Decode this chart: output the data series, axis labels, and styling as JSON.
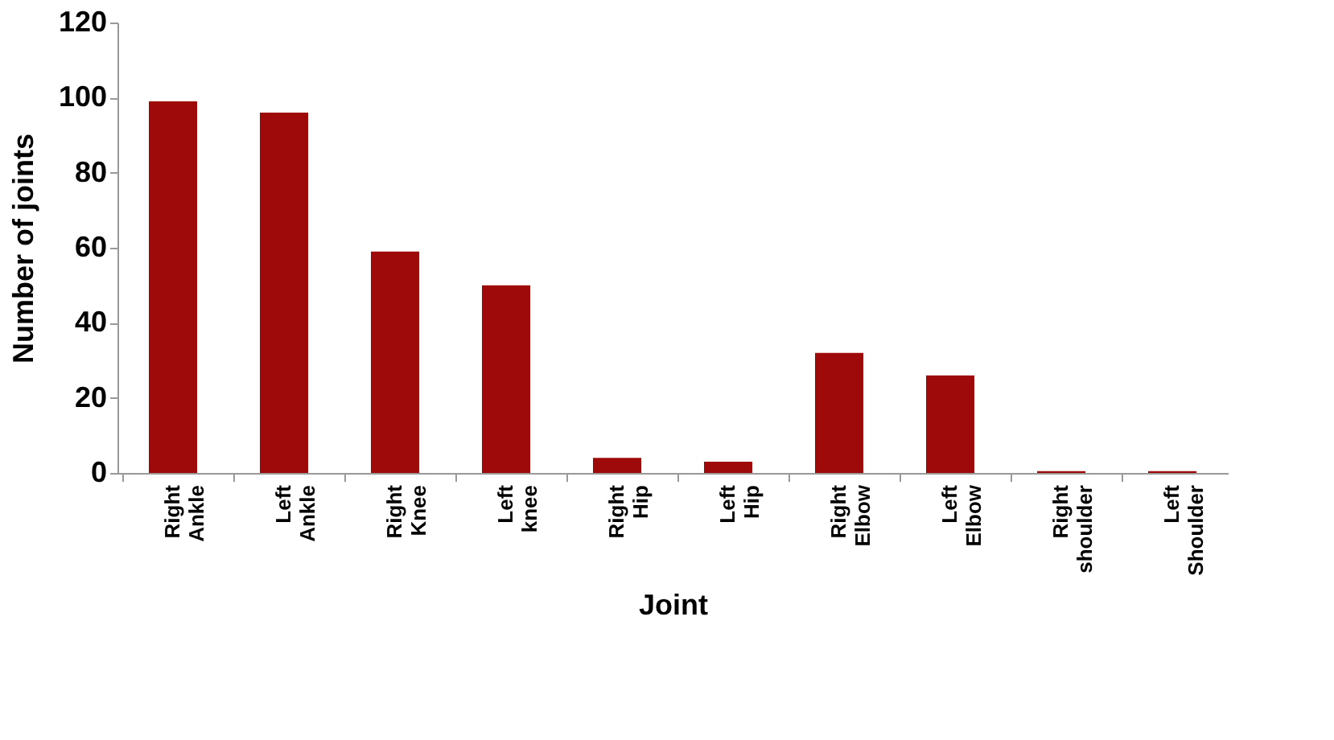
{
  "chart_data": {
    "type": "bar",
    "xlabel": "Joint",
    "ylabel": "Number of joints",
    "categories": [
      "Right Ankle",
      "Left Ankle",
      "Right Knee",
      "Left knee",
      "Right Hip",
      "Left Hip",
      "Right Elbow",
      "Left Elbow",
      "Right shoulder",
      "Left Shoulder"
    ],
    "values": [
      99,
      96,
      59,
      50,
      4,
      3,
      32,
      26,
      0.5,
      0.5
    ],
    "color": "#9e0a0a",
    "ylim": [
      0,
      120
    ],
    "yticks": [
      0,
      20,
      40,
      60,
      80,
      100,
      120
    ],
    "grid": false
  }
}
